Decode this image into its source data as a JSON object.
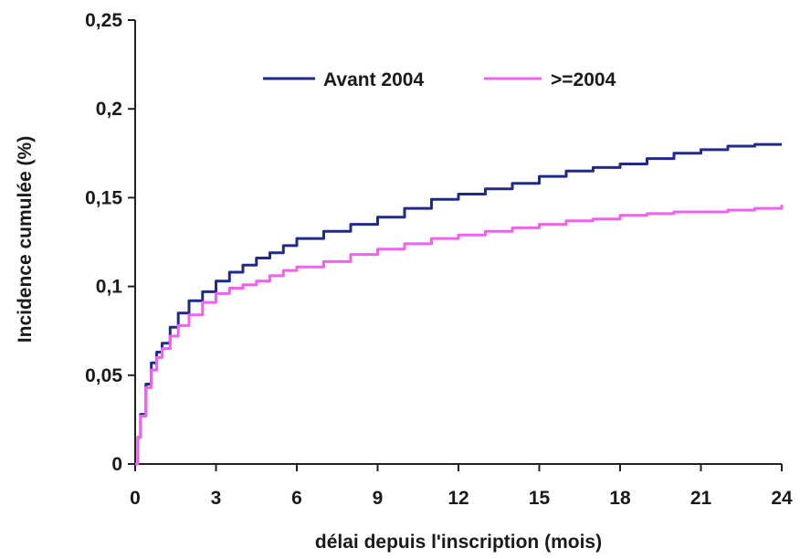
{
  "chart_data": {
    "type": "line",
    "title": "",
    "xlabel": "délai depuis l'inscription (mois)",
    "ylabel": "Incidence cumulée (%)",
    "xlim": [
      0,
      24
    ],
    "ylim": [
      0,
      0.25
    ],
    "x_ticks": [
      0,
      3,
      6,
      9,
      12,
      15,
      18,
      21,
      24
    ],
    "x_tick_labels": [
      "0",
      "3",
      "6",
      "9",
      "12",
      "15",
      "18",
      "21",
      "24"
    ],
    "y_ticks": [
      0,
      0.05,
      0.1,
      0.15,
      0.2,
      0.25
    ],
    "y_tick_labels": [
      "0",
      "0,05",
      "0,1",
      "0,15",
      "0,2",
      "0,25"
    ],
    "grid": false,
    "legend": "top-center",
    "series": [
      {
        "name": "Avant 2004",
        "color": "#1f2a8a",
        "x": [
          0,
          0.1,
          0.2,
          0.4,
          0.6,
          0.8,
          1,
          1.3,
          1.6,
          2,
          2.5,
          3,
          3.5,
          4,
          4.5,
          5,
          5.5,
          6,
          7,
          8,
          9,
          10,
          11,
          12,
          13,
          14,
          15,
          16,
          17,
          18,
          19,
          20,
          21,
          22,
          23,
          24
        ],
        "y": [
          0,
          0.015,
          0.028,
          0.045,
          0.057,
          0.063,
          0.068,
          0.077,
          0.085,
          0.092,
          0.097,
          0.103,
          0.108,
          0.112,
          0.116,
          0.119,
          0.123,
          0.127,
          0.131,
          0.135,
          0.139,
          0.144,
          0.149,
          0.152,
          0.155,
          0.158,
          0.162,
          0.165,
          0.167,
          0.169,
          0.172,
          0.175,
          0.177,
          0.179,
          0.18,
          0.18
        ]
      },
      {
        "name": ">=2004",
        "color": "#ee62ee",
        "x": [
          0,
          0.1,
          0.2,
          0.4,
          0.6,
          0.8,
          1,
          1.3,
          1.6,
          2,
          2.5,
          3,
          3.5,
          4,
          4.5,
          5,
          5.5,
          6,
          7,
          8,
          9,
          10,
          11,
          12,
          13,
          14,
          15,
          16,
          17,
          18,
          19,
          20,
          21,
          22,
          23,
          24
        ],
        "y": [
          0,
          0.015,
          0.027,
          0.043,
          0.053,
          0.06,
          0.065,
          0.072,
          0.078,
          0.084,
          0.091,
          0.096,
          0.099,
          0.101,
          0.103,
          0.106,
          0.109,
          0.111,
          0.114,
          0.118,
          0.121,
          0.124,
          0.127,
          0.129,
          0.131,
          0.133,
          0.135,
          0.137,
          0.138,
          0.14,
          0.141,
          0.142,
          0.142,
          0.143,
          0.144,
          0.146
        ]
      }
    ]
  }
}
